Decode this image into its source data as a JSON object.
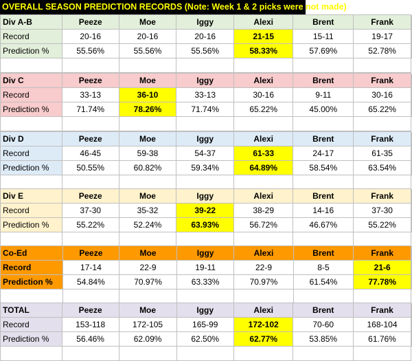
{
  "title": "OVERALL SEASON PREDICTION RECORDS (Note: Week 1 & 2 picks were not made)",
  "players": [
    "Peeze",
    "Moe",
    "Iggy",
    "Alexi",
    "Brent",
    "Frank"
  ],
  "colors": {
    "highlight": "#ffff00",
    "title_bg": "#000000",
    "title_text": "#ffff00",
    "div_ab": "#e2efda",
    "div_c": "#f8cbcc",
    "div_d": "#ddebf7",
    "div_e": "#fff2cc",
    "co_ed": "#ff9900",
    "total": "#e4dfec"
  },
  "sections": [
    {
      "name": "Div A-B",
      "record_label": "Record",
      "pct_label": "Prediction %",
      "records": [
        "20-16",
        "20-16",
        "20-16",
        "21-15",
        "15-11",
        "19-17"
      ],
      "percents": [
        "55.56%",
        "55.56%",
        "55.56%",
        "58.33%",
        "57.69%",
        "52.78%"
      ],
      "leader_index": 3
    },
    {
      "name": "Div C",
      "record_label": "Record",
      "pct_label": "Prediction %",
      "records": [
        "33-13",
        "36-10",
        "33-13",
        "30-16",
        "9-11",
        "30-16"
      ],
      "percents": [
        "71.74%",
        "78.26%",
        "71.74%",
        "65.22%",
        "45.00%",
        "65.22%"
      ],
      "leader_index": 1
    },
    {
      "name": "Div D",
      "record_label": "Record",
      "pct_label": "Prediction %",
      "records": [
        "46-45",
        "59-38",
        "54-37",
        "61-33",
        "24-17",
        "61-35"
      ],
      "percents": [
        "50.55%",
        "60.82%",
        "59.34%",
        "64.89%",
        "58.54%",
        "63.54%"
      ],
      "leader_index": 3
    },
    {
      "name": "Div E",
      "record_label": "Record",
      "pct_label": "Prediction %",
      "records": [
        "37-30",
        "35-32",
        "39-22",
        "38-29",
        "14-16",
        "37-30"
      ],
      "percents": [
        "55.22%",
        "52.24%",
        "63.93%",
        "56.72%",
        "46.67%",
        "55.22%"
      ],
      "leader_index": 2
    },
    {
      "name": "Co-Ed",
      "record_label": "Record",
      "pct_label": "Prediction %",
      "records": [
        "17-14",
        "22-9",
        "19-11",
        "22-9",
        "8-5",
        "21-6"
      ],
      "percents": [
        "54.84%",
        "70.97%",
        "63.33%",
        "70.97%",
        "61.54%",
        "77.78%"
      ],
      "leader_index": 5
    },
    {
      "name": "TOTAL",
      "record_label": "Record",
      "pct_label": "Prediction %",
      "records": [
        "153-118",
        "172-105",
        "165-99",
        "172-102",
        "70-60",
        "168-104"
      ],
      "percents": [
        "56.46%",
        "62.09%",
        "62.50%",
        "62.77%",
        "53.85%",
        "61.76%"
      ],
      "leader_index": 3
    }
  ]
}
